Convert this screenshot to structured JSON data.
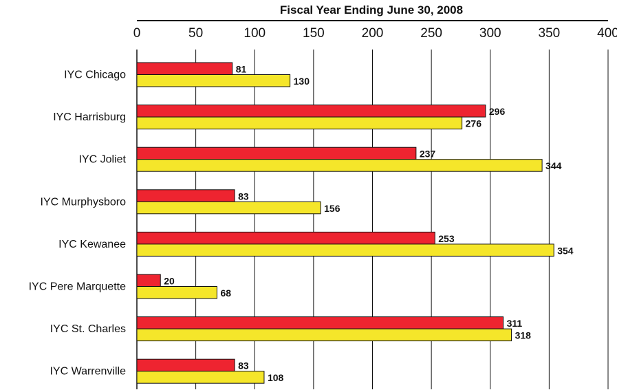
{
  "chart_data": {
    "type": "bar",
    "orientation": "horizontal",
    "title": "Fiscal Year Ending June 30, 2008",
    "categories": [
      "IYC Chicago",
      "IYC Harrisburg",
      "IYC Joliet",
      "IYC Murphysboro",
      "IYC Kewanee",
      "IYC Pere Marquette",
      "IYC St. Charles",
      "IYC Warrenville"
    ],
    "series": [
      {
        "values": [
          81,
          296,
          237,
          83,
          253,
          20,
          311,
          83
        ],
        "color": "#ee2430"
      },
      {
        "values": [
          130,
          276,
          344,
          156,
          354,
          68,
          318,
          108
        ],
        "color": "#f5e62a"
      }
    ],
    "xlim": [
      0,
      400
    ],
    "xticks": [
      0,
      50,
      100,
      150,
      200,
      250,
      300,
      350,
      400
    ],
    "x_axis_position": "top",
    "grid": true,
    "data_labels": true
  }
}
